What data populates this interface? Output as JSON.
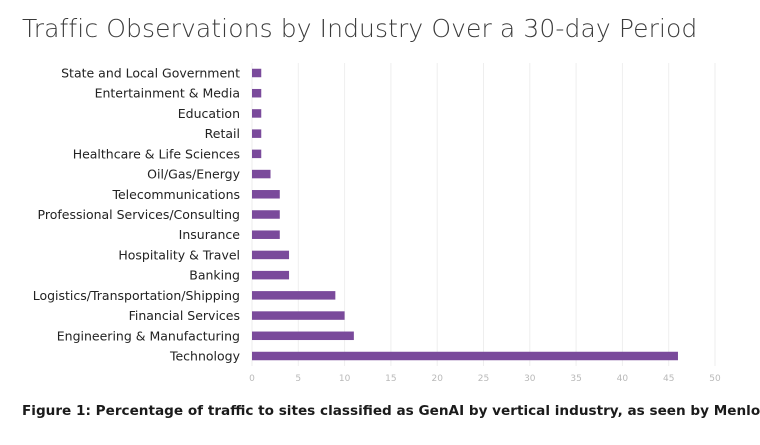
{
  "chart_data": {
    "type": "bar",
    "orientation": "horizontal",
    "title": "Traffic Observations by Industry Over a 30-day Period",
    "caption": "Figure 1: Percentage of traffic to sites classified as GenAI by vertical industry, as seen by Menlo",
    "categories": [
      "State and Local Government",
      "Entertainment & Media",
      "Education",
      "Retail",
      "Healthcare & Life Sciences",
      "Oil/Gas/Energy",
      "Telecommunications",
      "Professional Services/Consulting",
      "Insurance",
      "Hospitality & Travel",
      "Banking",
      "Logistics/Transportation/Shipping",
      "Financial Services",
      "Engineering & Manufacturing",
      "Technology"
    ],
    "values": [
      1,
      1,
      1,
      1,
      1,
      2,
      3,
      3,
      3,
      4,
      4,
      9,
      10,
      11,
      46
    ],
    "xlim": [
      0,
      50
    ],
    "xticks": [
      0,
      5,
      10,
      15,
      20,
      25,
      30,
      35,
      40,
      45,
      50
    ],
    "grid": true,
    "bar_color": "#7a4a9b",
    "grid_color": "#eeeeee"
  }
}
